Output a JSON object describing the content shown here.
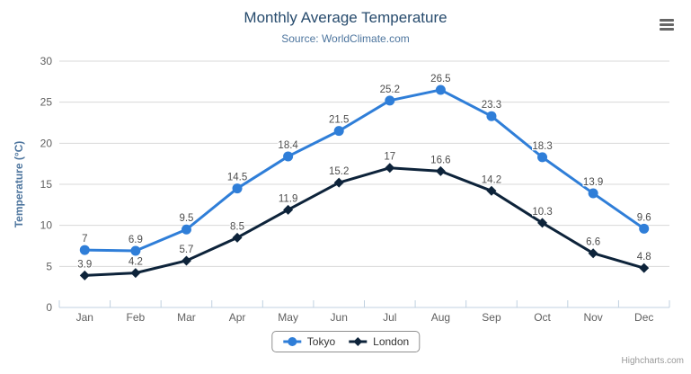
{
  "chart_data": {
    "type": "line",
    "title": "Monthly Average Temperature",
    "subtitle": "Source: WorldClimate.com",
    "xlabel": "",
    "ylabel": "Temperature (°C)",
    "ylim": [
      0,
      30
    ],
    "ytick_step": 5,
    "grid": true,
    "legend_position": "bottom-center",
    "categories": [
      "Jan",
      "Feb",
      "Mar",
      "Apr",
      "May",
      "Jun",
      "Jul",
      "Aug",
      "Sep",
      "Oct",
      "Nov",
      "Dec"
    ],
    "series": [
      {
        "name": "Tokyo",
        "marker": "circle",
        "color": "#2f7ed8",
        "values": [
          7,
          6.9,
          9.5,
          14.5,
          18.4,
          21.5,
          25.2,
          26.5,
          23.3,
          18.3,
          13.9,
          9.6
        ]
      },
      {
        "name": "London",
        "marker": "diamond",
        "color": "#0d233a",
        "values": [
          3.9,
          4.2,
          5.7,
          8.5,
          11.9,
          15.2,
          17,
          16.6,
          14.2,
          10.3,
          6.6,
          4.8
        ]
      }
    ]
  },
  "colors": {
    "title": "#274b6d",
    "subtitle": "#4d759e",
    "axis_title": "#4d759e",
    "tick_label": "#606060",
    "data_label": "#4d4d4d",
    "grid_line": "#d8d8d8",
    "axis_line": "#c0d0e0",
    "legend_border": "#909090",
    "legend_text": "#333333",
    "menu_icon": "#666666",
    "credits": "#999999"
  },
  "icons": {
    "menu": "hamburger-menu-icon"
  },
  "credits_label": "Highcharts.com"
}
